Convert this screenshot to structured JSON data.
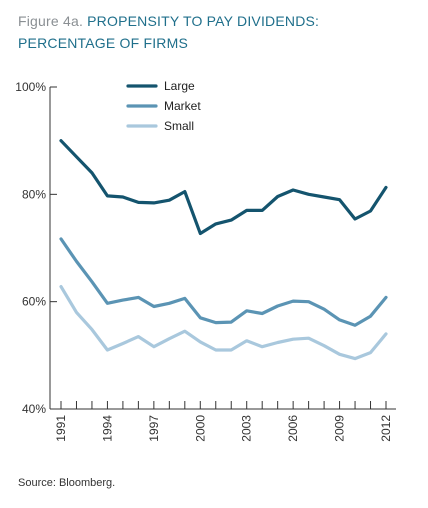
{
  "figure": {
    "number_label": "Figure 4a.",
    "title_line1": "PROPENSITY TO PAY DIVIDENDS:",
    "title_line2": "PERCENTAGE OF FIRMS",
    "source": "Source: Bloomberg."
  },
  "colors": {
    "Large": "#14546e",
    "Market": "#5b94b4",
    "Small": "#a9c8dd",
    "axis": "#333333",
    "title": "#1f6f8b",
    "figure_label": "#8a8f93"
  },
  "chart_data": {
    "type": "line",
    "title": "PROPENSITY TO PAY DIVIDENDS: PERCENTAGE OF FIRMS",
    "xlabel": "",
    "ylabel": "",
    "x": [
      1991,
      1992,
      1993,
      1994,
      1995,
      1996,
      1997,
      1998,
      1999,
      2000,
      2001,
      2002,
      2003,
      2004,
      2005,
      2006,
      2007,
      2008,
      2009,
      2010,
      2011,
      2012
    ],
    "xticks_labeled": [
      "1991",
      "1994",
      "1997",
      "2000",
      "2003",
      "2006",
      "2009",
      "2012"
    ],
    "yticks": [
      "40%",
      "60%",
      "80%",
      "100%"
    ],
    "ylim": [
      40,
      100
    ],
    "legend_position": "top-center",
    "series": [
      {
        "name": "Large",
        "values": [
          90,
          87,
          84,
          79.7,
          79.5,
          78.5,
          78.4,
          78.9,
          80.5,
          72.7,
          74.5,
          75.2,
          77,
          77,
          79.6,
          80.8,
          80,
          79.5,
          79,
          75.4,
          76.9,
          81.3
        ]
      },
      {
        "name": "Market",
        "values": [
          71.7,
          67.5,
          63.7,
          59.7,
          60.3,
          60.8,
          59.1,
          59.7,
          60.6,
          57,
          56.1,
          56.2,
          58.3,
          57.8,
          59.2,
          60.1,
          60,
          58.6,
          56.6,
          55.6,
          57.3,
          60.8
        ]
      },
      {
        "name": "Small",
        "values": [
          62.8,
          58,
          54.8,
          51,
          52.2,
          53.5,
          51.6,
          53.1,
          54.5,
          52.5,
          51,
          51,
          52.7,
          51.6,
          52.4,
          53,
          53.2,
          51.8,
          50.2,
          49.4,
          50.5,
          54
        ]
      }
    ]
  }
}
